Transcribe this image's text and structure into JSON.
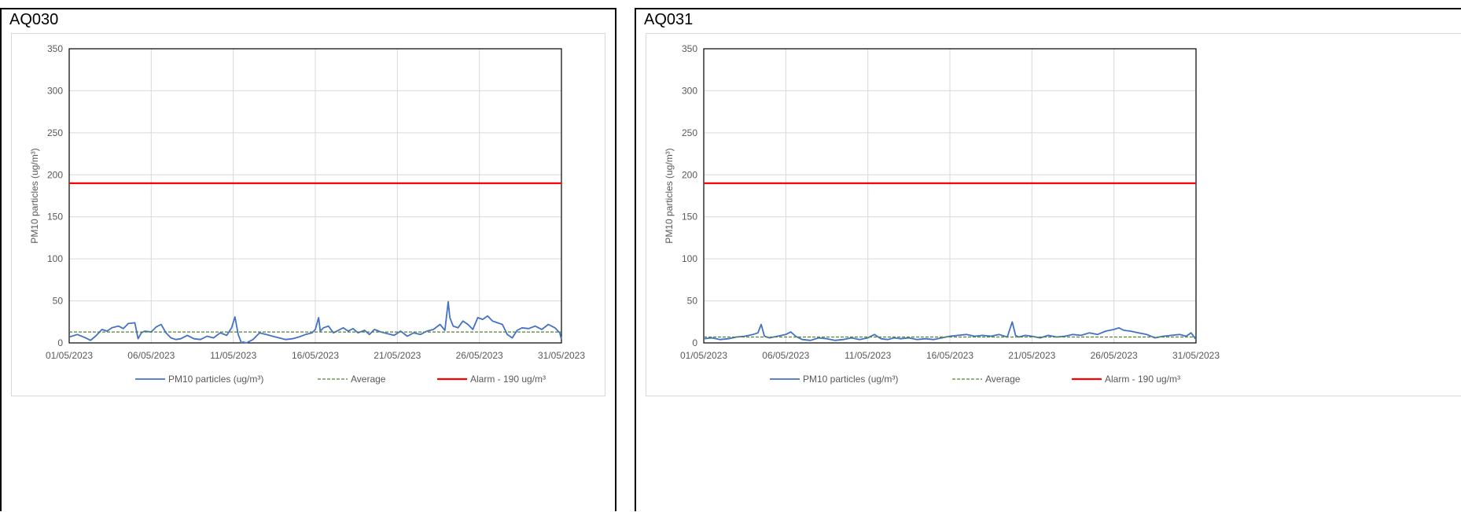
{
  "panels": [
    {
      "title": "AQ030"
    },
    {
      "title": "AQ031"
    }
  ],
  "chart_data": [
    {
      "type": "line",
      "title": "",
      "xlabel": "",
      "ylabel": "PM10 particles (ug/m³)",
      "ylim": [
        0,
        350
      ],
      "yticks": [
        "0",
        "50",
        "100",
        "150",
        "200",
        "250",
        "300",
        "350"
      ],
      "x_start": "01/05/2023",
      "x_end": "31/05/2023",
      "xticks": [
        "01/05/2023",
        "06/05/2023",
        "11/05/2023",
        "16/05/2023",
        "21/05/2023",
        "26/05/2023",
        "31/05/2023"
      ],
      "grid": true,
      "legend_position": "bottom",
      "series": [
        {
          "name": "PM10 particles (ug/m³)",
          "color": "#4472c4",
          "style": "solid",
          "x_day": [
            1,
            1.5,
            2,
            2.3,
            2.6,
            3,
            3.3,
            3.6,
            4,
            4.3,
            4.6,
            5,
            5.2,
            5.4,
            5.6,
            6,
            6.3,
            6.6,
            6.9,
            7.2,
            7.5,
            7.8,
            8.2,
            8.6,
            9,
            9.4,
            9.8,
            10.2,
            10.6,
            10.9,
            11.1,
            11.3,
            11.5,
            11.6,
            11.8,
            12.2,
            12.6,
            13,
            13.4,
            13.8,
            14.2,
            14.6,
            15,
            15.4,
            15.8,
            16,
            16.2,
            16.3,
            16.5,
            16.8,
            17.1,
            17.4,
            17.7,
            18,
            18.3,
            18.6,
            19,
            19.3,
            19.6,
            20,
            20.4,
            20.8,
            21.2,
            21.6,
            22,
            22.4,
            22.8,
            23.2,
            23.6,
            23.9,
            24.1,
            24.2,
            24.4,
            24.7,
            25,
            25.3,
            25.6,
            25.9,
            26.2,
            26.5,
            26.8,
            27.1,
            27.4,
            27.7,
            28,
            28.3,
            28.6,
            29,
            29.4,
            29.8,
            30.2,
            30.6,
            30.9,
            31
          ],
          "values": [
            7,
            10,
            6,
            3,
            8,
            16,
            14,
            18,
            20,
            17,
            23,
            24,
            5,
            12,
            14,
            13,
            19,
            22,
            12,
            6,
            4,
            5,
            9,
            5,
            4,
            8,
            6,
            12,
            9,
            18,
            31,
            10,
            0,
            1,
            0,
            4,
            12,
            10,
            8,
            6,
            4,
            5,
            7,
            10,
            12,
            16,
            30,
            14,
            18,
            20,
            12,
            15,
            18,
            14,
            17,
            12,
            15,
            10,
            16,
            13,
            11,
            9,
            14,
            8,
            12,
            10,
            14,
            16,
            22,
            15,
            49,
            30,
            20,
            18,
            26,
            22,
            16,
            30,
            28,
            32,
            26,
            24,
            22,
            10,
            6,
            15,
            18,
            17,
            20,
            16,
            22,
            18,
            12,
            4
          ]
        },
        {
          "name": "Average",
          "color": "#548235",
          "style": "dashed",
          "x_day": [
            1,
            31
          ],
          "values": [
            13,
            13
          ]
        },
        {
          "name": "Alarm - 190 ug/m³",
          "color": "#ff0000",
          "style": "solid",
          "x_day": [
            1,
            31
          ],
          "values": [
            190,
            190
          ]
        }
      ]
    },
    {
      "type": "line",
      "title": "",
      "xlabel": "",
      "ylabel": "PM10 particles (ug/m³)",
      "ylim": [
        0,
        350
      ],
      "yticks": [
        "0",
        "50",
        "100",
        "150",
        "200",
        "250",
        "300",
        "350"
      ],
      "x_start": "01/05/2023",
      "x_end": "31/05/2023",
      "xticks": [
        "01/05/2023",
        "06/05/2023",
        "11/05/2023",
        "16/05/2023",
        "21/05/2023",
        "26/05/2023",
        "31/05/2023"
      ],
      "grid": true,
      "legend_position": "bottom",
      "series": [
        {
          "name": "PM10 particles (ug/m³)",
          "color": "#4472c4",
          "style": "solid",
          "x_day": [
            1,
            1.5,
            2,
            2.5,
            3,
            3.5,
            4,
            4.3,
            4.5,
            4.7,
            5,
            5.5,
            6,
            6.3,
            6.6,
            7,
            7.5,
            8,
            8.5,
            9,
            9.5,
            10,
            10.5,
            11,
            11.4,
            11.8,
            12.2,
            12.6,
            13,
            13.5,
            14,
            14.5,
            15,
            15.5,
            16,
            16.5,
            17,
            17.5,
            18,
            18.5,
            19,
            19.5,
            19.8,
            20,
            20.2,
            20.6,
            21,
            21.5,
            22,
            22.5,
            23,
            23.5,
            24,
            24.5,
            25,
            25.5,
            26,
            26.3,
            26.6,
            27,
            27.5,
            28,
            28.5,
            29,
            29.5,
            30,
            30.4,
            30.7,
            31
          ],
          "values": [
            5,
            6,
            4,
            5,
            7,
            8,
            10,
            12,
            22,
            8,
            6,
            8,
            10,
            13,
            8,
            4,
            3,
            6,
            5,
            3,
            4,
            6,
            4,
            6,
            10,
            5,
            4,
            6,
            5,
            6,
            4,
            5,
            4,
            6,
            8,
            9,
            10,
            8,
            9,
            8,
            10,
            7,
            25,
            9,
            7,
            9,
            8,
            6,
            9,
            7,
            8,
            10,
            9,
            12,
            10,
            14,
            16,
            18,
            15,
            14,
            12,
            10,
            6,
            8,
            9,
            10,
            8,
            12,
            4
          ]
        },
        {
          "name": "Average",
          "color": "#548235",
          "style": "dashed",
          "x_day": [
            1,
            31
          ],
          "values": [
            7,
            7
          ]
        },
        {
          "name": "Alarm - 190 ug/m³",
          "color": "#ff0000",
          "style": "solid",
          "x_day": [
            1,
            31
          ],
          "values": [
            190,
            190
          ]
        }
      ]
    }
  ]
}
